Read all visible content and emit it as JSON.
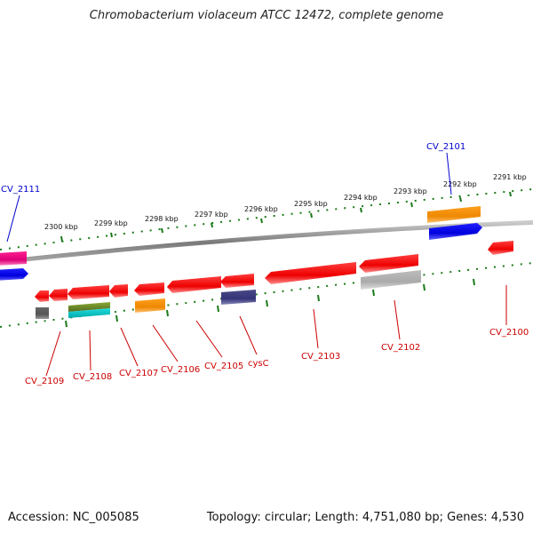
{
  "title": "Chromobacterium violaceum ATCC 12472, complete genome",
  "footer": {
    "accession": "Accession: NC_005085",
    "topology": "Topology: circular; Length: 4,751,080 bp; Genes: 4,530"
  },
  "scale_labels": [
    "2300 kbp",
    "2299 kbp",
    "2298 kbp",
    "2297 kbp",
    "2296 kbp",
    "2295 kbp",
    "2294 kbp",
    "2293 kbp",
    "2292 kbp",
    "2291 kbp"
  ],
  "gene_labels": [
    "CV_2111",
    "CV_2101",
    "CV_2109",
    "CV_2108",
    "CV_2107",
    "CV_2106",
    "CV_2105",
    "cysC",
    "CV_2103",
    "CV_2102",
    "CV_2100"
  ],
  "colors": {
    "forward_label": "#0000cc",
    "reverse_label": "#cc0000",
    "scale_ticks": "#1a7a1a",
    "backbone": "#7a7a7a"
  }
}
